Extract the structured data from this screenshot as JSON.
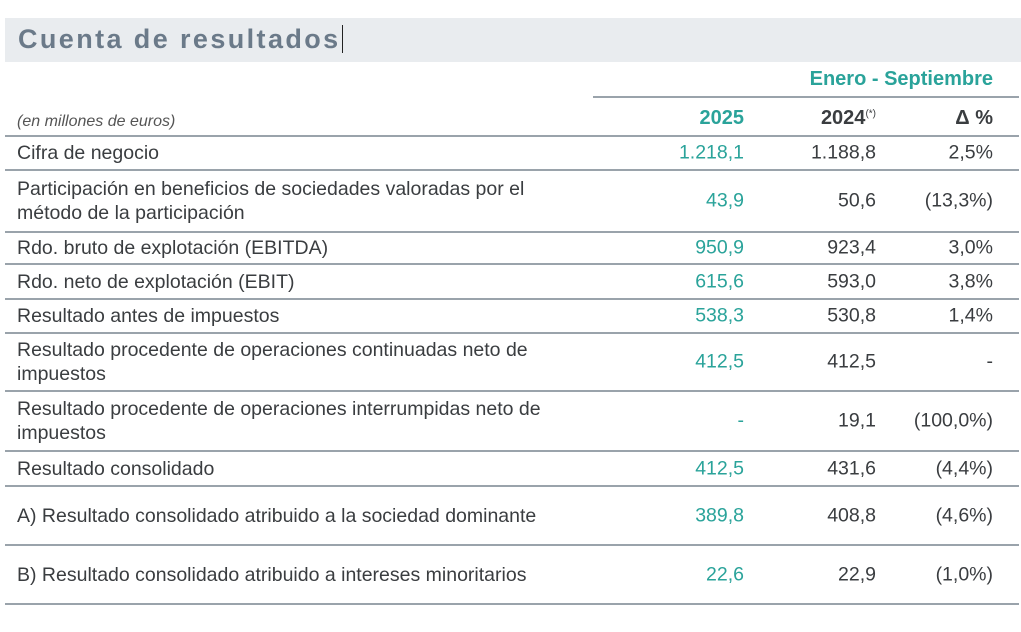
{
  "title": "Cuenta de resultados",
  "period": "Enero - Septiembre",
  "units": "(en millones de euros)",
  "columns": {
    "y2025": "2025",
    "y2024": "2024",
    "y2024_note": "(*)",
    "delta": "Δ %"
  },
  "rows": [
    {
      "label": "Cifra de negocio",
      "v2025": "1.218,1",
      "v2024": "1.188,8",
      "delta": "2,5%"
    },
    {
      "label": "Participación en beneficios de sociedades valoradas por el método de la participación",
      "v2025": "43,9",
      "v2024": "50,6",
      "delta": "(13,3%)"
    },
    {
      "label": "Rdo. bruto de explotación (EBITDA)",
      "v2025": "950,9",
      "v2024": "923,4",
      "delta": "3,0%"
    },
    {
      "label": "Rdo. neto de explotación (EBIT)",
      "v2025": "615,6",
      "v2024": "593,0",
      "delta": "3,8%"
    },
    {
      "label": "Resultado antes de impuestos",
      "v2025": "538,3",
      "v2024": "530,8",
      "delta": "1,4%"
    },
    {
      "label": "Resultado procedente de operaciones continuadas neto de impuestos",
      "v2025": "412,5",
      "v2024": "412,5",
      "delta": "-"
    },
    {
      "label": "Resultado procedente de operaciones interrumpidas neto de impuestos",
      "v2025": "-",
      "v2024": "19,1",
      "delta": "(100,0%)"
    },
    {
      "label": "Resultado consolidado",
      "v2025": "412,5",
      "v2024": "431,6",
      "delta": "(4,4%)"
    },
    {
      "label": "A) Resultado consolidado atribuido a la sociedad dominante",
      "v2025": "389,8",
      "v2024": "408,8",
      "delta": "(4,6%)"
    },
    {
      "label": "B) Resultado consolidado atribuido a intereses minoritarios",
      "v2025": "22,6",
      "v2024": "22,9",
      "delta": "(1,0%)"
    }
  ]
}
